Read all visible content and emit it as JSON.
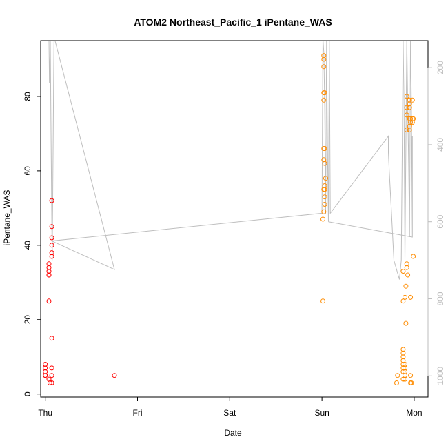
{
  "chart_data": {
    "type": "scatter",
    "title": "ATOM2 Northeast_Pacific_1 iPentane_WAS",
    "xlabel": "Date",
    "ylabel": "iPentane_WAS",
    "x_ticks": [
      "Thu",
      "Fri",
      "Sat",
      "Sun",
      "Mon"
    ],
    "y_ticks": [
      0,
      20,
      40,
      60,
      80
    ],
    "y2_ticks": [
      200,
      400,
      600,
      800,
      1000
    ],
    "xlim_days": [
      -0.05,
      4.15
    ],
    "ylim": [
      -0.8,
      95
    ],
    "y2lim_reversed": [
      130,
      1055
    ],
    "colors": {
      "red": "#ff0000",
      "orange": "#ff8c00",
      "line": "#bebebe",
      "axis": "#000000",
      "axis2": "#bebebe"
    },
    "series": [
      {
        "color": "red",
        "points": [
          [
            0.0,
            8
          ],
          [
            0.0,
            7
          ],
          [
            0.0,
            6
          ],
          [
            0.0,
            5
          ],
          [
            0.0,
            5
          ],
          [
            0.0,
            5
          ],
          [
            0.04,
            35
          ],
          [
            0.04,
            34
          ],
          [
            0.04,
            33
          ],
          [
            0.04,
            32
          ],
          [
            0.04,
            32
          ],
          [
            0.04,
            25
          ],
          [
            0.04,
            4
          ],
          [
            0.07,
            52
          ],
          [
            0.07,
            45
          ],
          [
            0.07,
            42
          ],
          [
            0.07,
            40
          ],
          [
            0.07,
            38
          ],
          [
            0.07,
            37
          ],
          [
            0.07,
            15
          ],
          [
            0.07,
            7
          ],
          [
            0.07,
            5
          ],
          [
            0.07,
            3
          ],
          [
            0.05,
            3
          ],
          [
            0.75,
            5
          ]
        ]
      },
      {
        "color": "orange",
        "points": [
          [
            3.02,
            91
          ],
          [
            3.02,
            90
          ],
          [
            3.02,
            88
          ],
          [
            3.02,
            81
          ],
          [
            3.03,
            81
          ],
          [
            3.02,
            79
          ],
          [
            3.02,
            66
          ],
          [
            3.03,
            66
          ],
          [
            3.02,
            63
          ],
          [
            3.03,
            62
          ],
          [
            3.04,
            58
          ],
          [
            3.03,
            56
          ],
          [
            3.02,
            55
          ],
          [
            3.03,
            55
          ],
          [
            3.03,
            53
          ],
          [
            3.03,
            51
          ],
          [
            3.02,
            49
          ],
          [
            3.01,
            47
          ],
          [
            3.01,
            25
          ],
          [
            3.82,
            5
          ],
          [
            3.81,
            3
          ],
          [
            3.88,
            33
          ],
          [
            3.88,
            25
          ],
          [
            3.88,
            12
          ],
          [
            3.88,
            11
          ],
          [
            3.88,
            10
          ],
          [
            3.88,
            9
          ],
          [
            3.88,
            8
          ],
          [
            3.88,
            7
          ],
          [
            3.88,
            6
          ],
          [
            3.88,
            4
          ],
          [
            3.9,
            8
          ],
          [
            3.9,
            7
          ],
          [
            3.9,
            6
          ],
          [
            3.9,
            5
          ],
          [
            3.9,
            4
          ],
          [
            3.9,
            26
          ],
          [
            3.91,
            29
          ],
          [
            3.91,
            19
          ],
          [
            3.92,
            80
          ],
          [
            3.92,
            77
          ],
          [
            3.92,
            75
          ],
          [
            3.92,
            71
          ],
          [
            3.92,
            35
          ],
          [
            3.92,
            34
          ],
          [
            3.93,
            32
          ],
          [
            3.95,
            79
          ],
          [
            3.95,
            78
          ],
          [
            3.95,
            77
          ],
          [
            3.95,
            74
          ],
          [
            3.95,
            72
          ],
          [
            3.95,
            71
          ],
          [
            3.96,
            74
          ],
          [
            3.96,
            73
          ],
          [
            3.96,
            26
          ],
          [
            3.96,
            5
          ],
          [
            3.96,
            3
          ],
          [
            3.97,
            3
          ],
          [
            3.98,
            79
          ],
          [
            3.98,
            74
          ],
          [
            3.98,
            73
          ],
          [
            3.99,
            74
          ],
          [
            3.99,
            37
          ]
        ]
      }
    ],
    "altitude_line": [
      [
        0.04,
        125
      ],
      [
        0.045,
        240
      ],
      [
        0.05,
        180
      ],
      [
        0.055,
        125
      ],
      [
        0.06,
        300
      ],
      [
        0.065,
        450
      ],
      [
        0.07,
        600
      ],
      [
        0.075,
        700
      ],
      [
        0.08,
        560
      ],
      [
        0.085,
        400
      ],
      [
        0.09,
        250
      ],
      [
        0.095,
        125
      ],
      [
        0.1,
        125
      ],
      [
        0.75,
        724
      ],
      [
        0.07,
        650
      ],
      [
        3.0,
        578
      ],
      [
        3.01,
        125
      ],
      [
        3.02,
        160
      ],
      [
        3.03,
        300
      ],
      [
        3.04,
        580
      ],
      [
        3.05,
        125
      ],
      [
        3.06,
        400
      ],
      [
        3.07,
        600
      ],
      [
        3.08,
        125
      ],
      [
        3.09,
        578
      ],
      [
        3.72,
        378
      ],
      [
        3.72,
        420
      ],
      [
        3.73,
        470
      ],
      [
        3.75,
        560
      ],
      [
        3.78,
        700
      ],
      [
        3.84,
        750
      ],
      [
        3.86,
        700
      ],
      [
        3.88,
        125
      ],
      [
        3.89,
        300
      ],
      [
        3.9,
        700
      ],
      [
        3.92,
        125
      ],
      [
        3.93,
        300
      ],
      [
        3.94,
        450
      ],
      [
        3.95,
        640
      ],
      [
        3.96,
        125
      ],
      [
        3.97,
        300
      ],
      [
        3.98,
        640
      ],
      [
        3.98,
        378
      ],
      [
        3.98,
        640
      ],
      [
        3.07,
        600
      ]
    ]
  }
}
